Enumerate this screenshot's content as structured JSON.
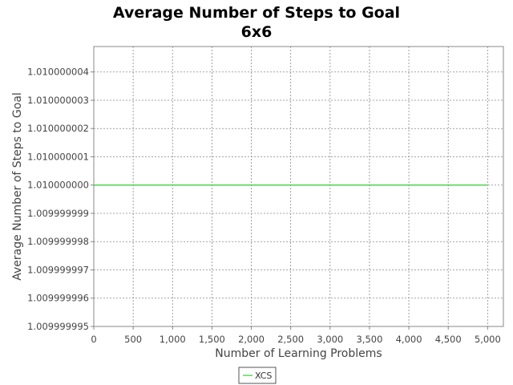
{
  "chart_data": {
    "type": "line",
    "title": "Average Number of Steps to Goal",
    "subtitle": "6x6",
    "xlabel": "Number of Learning Problems",
    "ylabel": "Average Number of Steps to Goal",
    "xlim": [
      0,
      5200
    ],
    "ylim": [
      1.009999995,
      1.0100000049
    ],
    "x_ticks": [
      0,
      500,
      1000,
      1500,
      2000,
      2500,
      3000,
      3500,
      4000,
      4500,
      5000
    ],
    "x_tick_labels": [
      "0",
      "500",
      "1,000",
      "1,500",
      "2,000",
      "2,500",
      "3,000",
      "3,500",
      "4,000",
      "4,500",
      "5,000"
    ],
    "y_ticks": [
      1.009999995,
      1.009999996,
      1.009999997,
      1.009999998,
      1.009999999,
      1.01,
      1.010000001,
      1.010000002,
      1.010000003,
      1.010000004
    ],
    "y_tick_labels": [
      "1.009999995",
      "1.009999996",
      "1.009999997",
      "1.009999998",
      "1.009999999",
      "1.010000000",
      "1.010000001",
      "1.010000002",
      "1.010000003",
      "1.010000004"
    ],
    "grid": true,
    "legend_position": "bottom",
    "series": [
      {
        "name": "XCS",
        "color": "#33cc33",
        "x": [
          0,
          5000
        ],
        "values": [
          1.01,
          1.01
        ]
      }
    ]
  }
}
